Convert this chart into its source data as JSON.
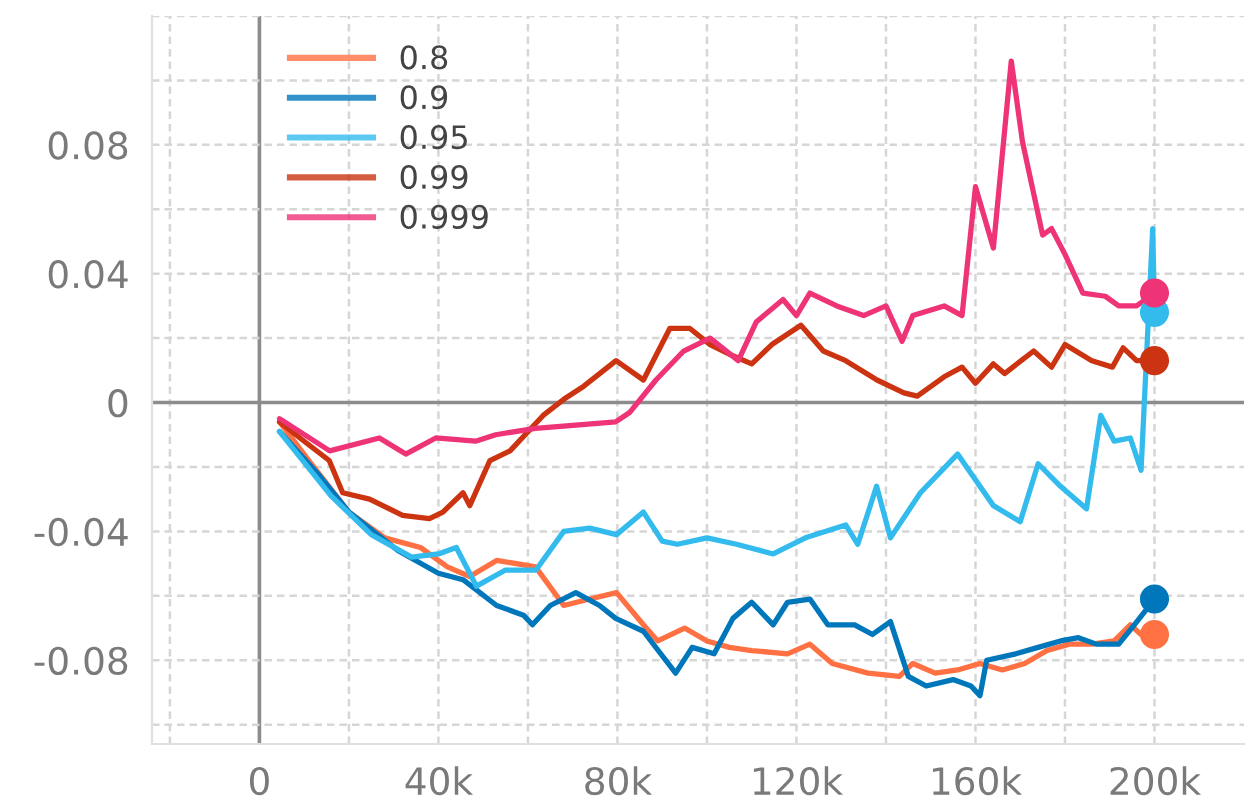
{
  "chart_data": {
    "type": "line",
    "legend": "top left",
    "grid": true,
    "line_style": "solid",
    "xlim": [
      -24000,
      220000
    ],
    "ylim": [
      -0.106,
      0.12
    ],
    "xticks": [
      {
        "value": -20000,
        "label": null
      },
      0,
      {
        "value": 20000,
        "label": null
      },
      {
        "value": 40000,
        "label": "40k"
      },
      {
        "value": 60000,
        "label": null
      },
      {
        "value": 80000,
        "label": "80k"
      },
      {
        "value": 100000,
        "label": null
      },
      {
        "value": 120000,
        "label": "120k"
      },
      {
        "value": 140000,
        "label": null
      },
      {
        "value": 160000,
        "label": "160k"
      },
      {
        "value": 180000,
        "label": null
      },
      {
        "value": 200000,
        "label": "200k"
      }
    ],
    "yticks": [
      {
        "value": -0.1,
        "label": null
      },
      -0.08,
      {
        "value": -0.06,
        "label": null
      },
      -0.04,
      {
        "value": -0.02,
        "label": null
      },
      0,
      {
        "value": 0.02,
        "label": null
      },
      0.04,
      {
        "value": 0.06,
        "label": null
      },
      0.08,
      {
        "value": 0.1,
        "label": null
      },
      {
        "value": 0.12,
        "label": null
      }
    ],
    "series": [
      {
        "name": "0.8",
        "color": "#ff7043",
        "x": [
          4500,
          11600,
          20000,
          28000,
          36000,
          42000,
          47000,
          53000,
          61700,
          68000,
          73800,
          79800,
          85800,
          89000,
          95000,
          100000,
          105000,
          110000,
          118000,
          123000,
          128000,
          136000,
          143000,
          146000,
          151000,
          156000,
          161000,
          166000,
          171000,
          176000,
          181000,
          186000,
          191000,
          194600,
          197000,
          200000
        ],
        "values": [
          -0.006,
          -0.019,
          -0.034,
          -0.042,
          -0.045,
          -0.051,
          -0.054,
          -0.049,
          -0.051,
          -0.063,
          -0.061,
          -0.059,
          -0.069,
          -0.074,
          -0.07,
          -0.074,
          -0.076,
          -0.077,
          -0.078,
          -0.075,
          -0.081,
          -0.084,
          -0.085,
          -0.081,
          -0.084,
          -0.083,
          -0.081,
          -0.083,
          -0.081,
          -0.077,
          -0.075,
          -0.075,
          -0.074,
          -0.069,
          -0.072,
          -0.072
        ]
      },
      {
        "name": "0.9",
        "color": "#0077bb",
        "x": [
          4500,
          13000,
          20000,
          31000,
          40000,
          45500,
          53000,
          59000,
          61000,
          65000,
          70700,
          76000,
          79600,
          85800,
          93000,
          96700,
          101600,
          105800,
          110000,
          114800,
          118000,
          123000,
          127000,
          133000,
          137000,
          141000,
          145000,
          149000,
          155000,
          159000,
          161000,
          162500,
          169000,
          174000,
          179000,
          183000,
          187000,
          192000,
          195500,
          200000
        ],
        "values": [
          -0.009,
          -0.022,
          -0.034,
          -0.046,
          -0.053,
          -0.055,
          -0.063,
          -0.066,
          -0.069,
          -0.063,
          -0.059,
          -0.063,
          -0.067,
          -0.071,
          -0.084,
          -0.076,
          -0.078,
          -0.067,
          -0.062,
          -0.069,
          -0.062,
          -0.061,
          -0.069,
          -0.069,
          -0.072,
          -0.068,
          -0.085,
          -0.088,
          -0.086,
          -0.088,
          -0.091,
          -0.08,
          -0.078,
          -0.076,
          -0.074,
          -0.073,
          -0.075,
          -0.075,
          -0.069,
          -0.061
        ]
      },
      {
        "name": "0.95",
        "color": "#33bbee",
        "x": [
          4500,
          16000,
          25000,
          34000,
          40000,
          44000,
          48500,
          55000,
          61800,
          68000,
          73800,
          79800,
          85800,
          90000,
          93400,
          100000,
          106600,
          114800,
          122000,
          131000,
          133700,
          137900,
          141000,
          147700,
          156000,
          164000,
          170000,
          174000,
          179000,
          184800,
          188000,
          191000,
          194600,
          197000,
          199600,
          200000
        ],
        "values": [
          -0.009,
          -0.029,
          -0.041,
          -0.048,
          -0.047,
          -0.045,
          -0.057,
          -0.052,
          -0.052,
          -0.04,
          -0.039,
          -0.041,
          -0.034,
          -0.043,
          -0.044,
          -0.042,
          -0.044,
          -0.047,
          -0.042,
          -0.038,
          -0.044,
          -0.026,
          -0.042,
          -0.028,
          -0.016,
          -0.032,
          -0.037,
          -0.019,
          -0.026,
          -0.033,
          -0.004,
          -0.012,
          -0.011,
          -0.021,
          0.054,
          0.028
        ]
      },
      {
        "name": "0.99",
        "color": "#cc3311",
        "x": [
          4500,
          10000,
          15600,
          18600,
          24600,
          32000,
          38000,
          41000,
          45500,
          47000,
          51500,
          56000,
          63400,
          68000,
          72400,
          79700,
          85800,
          91700,
          96200,
          100700,
          105000,
          110000,
          114500,
          121000,
          126000,
          131000,
          138000,
          144000,
          147000,
          153000,
          157000,
          160000,
          164000,
          166500,
          173000,
          177000,
          180000,
          186000,
          190600,
          193000,
          196000,
          200000
        ],
        "values": [
          -0.006,
          -0.012,
          -0.018,
          -0.028,
          -0.03,
          -0.035,
          -0.036,
          -0.034,
          -0.028,
          -0.032,
          -0.018,
          -0.015,
          -0.004,
          0.001,
          0.005,
          0.013,
          0.007,
          0.023,
          0.023,
          0.018,
          0.015,
          0.012,
          0.018,
          0.024,
          0.016,
          0.013,
          0.007,
          0.003,
          0.002,
          0.008,
          0.011,
          0.006,
          0.012,
          0.009,
          0.016,
          0.011,
          0.018,
          0.013,
          0.011,
          0.017,
          0.013,
          0.013
        ]
      },
      {
        "name": "0.999",
        "color": "#ee3377",
        "x": [
          4500,
          15700,
          26800,
          32700,
          39400,
          48300,
          52800,
          61700,
          70700,
          79600,
          82800,
          88600,
          94800,
          100700,
          107000,
          111000,
          117000,
          120000,
          123000,
          129000,
          135000,
          140000,
          143600,
          146000,
          153000,
          157000,
          160000,
          164000,
          168000,
          170500,
          175000,
          177000,
          180000,
          184000,
          189000,
          192000,
          196000,
          200000
        ],
        "values": [
          -0.005,
          -0.015,
          -0.011,
          -0.016,
          -0.011,
          -0.012,
          -0.01,
          -0.008,
          -0.007,
          -0.006,
          -0.003,
          0.007,
          0.016,
          0.02,
          0.013,
          0.025,
          0.032,
          0.027,
          0.034,
          0.03,
          0.027,
          0.03,
          0.019,
          0.027,
          0.03,
          0.027,
          0.067,
          0.048,
          0.106,
          0.081,
          0.052,
          0.054,
          0.046,
          0.034,
          0.033,
          0.03,
          0.03,
          0.034
        ]
      },
      {
        "type": "scatter",
        "marker": "circle",
        "x": [
          200000,
          200000,
          200000,
          200000,
          200000
        ],
        "values": [
          -0.072,
          -0.061,
          0.028,
          0.013,
          0.034
        ],
        "colors": [
          "#ff7043",
          "#0077bb",
          "#33bbee",
          "#cc3311",
          "#ee3377"
        ]
      }
    ]
  }
}
